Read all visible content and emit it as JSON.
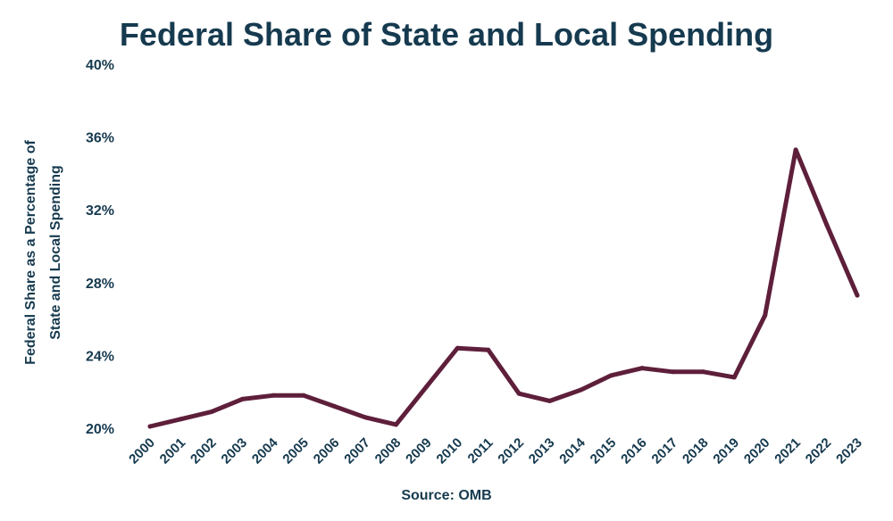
{
  "chart_data": {
    "type": "line",
    "title": "Federal Share of State and Local Spending",
    "ylabel_line1": "Federal Share as a Percentage of",
    "ylabel_line2": "State and Local Spending",
    "xlabel": "",
    "source": "Source: OMB",
    "x": [
      "2000",
      "2001",
      "2002",
      "2003",
      "2004",
      "2005",
      "2006",
      "2007",
      "2008",
      "2009",
      "2010",
      "2011",
      "2012",
      "2013",
      "2014",
      "2015",
      "2016",
      "2017",
      "2018",
      "2019",
      "2020",
      "2021",
      "2022",
      "2023"
    ],
    "series": [
      {
        "values": [
          20.1,
          20.5,
          20.9,
          21.6,
          21.8,
          21.8,
          21.2,
          20.6,
          20.2,
          22.3,
          24.4,
          24.3,
          21.9,
          21.5,
          22.1,
          22.9,
          23.3,
          23.1,
          23.1,
          22.8,
          26.2,
          35.3,
          31.2,
          27.3
        ],
        "color": "#5e1f3b"
      }
    ],
    "yticks": [
      "20%",
      "24%",
      "28%",
      "32%",
      "36%",
      "40%"
    ],
    "ylim": [
      20,
      40
    ],
    "grid": false,
    "legend": "none"
  }
}
